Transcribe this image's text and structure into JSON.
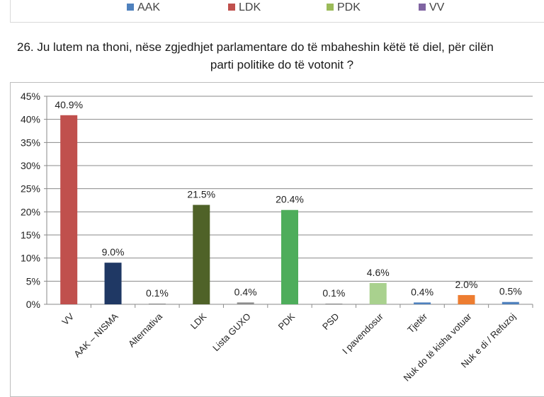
{
  "legend": [
    {
      "label": "AAK",
      "color": "#4f81bd"
    },
    {
      "label": "LDK",
      "color": "#c0504d"
    },
    {
      "label": "PDK",
      "color": "#9bbb59"
    },
    {
      "label": "VV",
      "color": "#8064a2"
    }
  ],
  "question": {
    "line1": "26. Ju lutem na thoni, nëse zgjedhjet parlamentare do të mbaheshin këtë të diel, për cilën",
    "line2": "parti politike do të votonit ?"
  },
  "chart_data": {
    "type": "bar",
    "categories": [
      "VV",
      "AAK – NISMA",
      "Alternativa",
      "LDK",
      "Lista GUXO",
      "PDK",
      "PSD",
      "I pavendosur",
      "Tjetër",
      "Nuk do të kisha votuar",
      "Nuk e di / Refuzoj"
    ],
    "values": [
      40.9,
      9.0,
      0.1,
      21.5,
      0.4,
      20.4,
      0.1,
      4.6,
      0.4,
      2.0,
      0.5
    ],
    "data_labels": [
      "40.9%",
      "9.0%",
      "0.1%",
      "21.5%",
      "0.4%",
      "20.4%",
      "0.1%",
      "4.6%",
      "0.4%",
      "2.0%",
      "0.5%"
    ],
    "colors": [
      "#c0504d",
      "#1f3864",
      "#8c8c8c",
      "#4f6228",
      "#8c8c8c",
      "#4ead5b",
      "#8c8c8c",
      "#a9d18e",
      "#4f81bd",
      "#ed7d31",
      "#4f81bd"
    ],
    "ylim": [
      0,
      45
    ],
    "yticks": [
      "0%",
      "5%",
      "10%",
      "15%",
      "20%",
      "25%",
      "30%",
      "35%",
      "40%",
      "45%"
    ],
    "grid": true
  }
}
